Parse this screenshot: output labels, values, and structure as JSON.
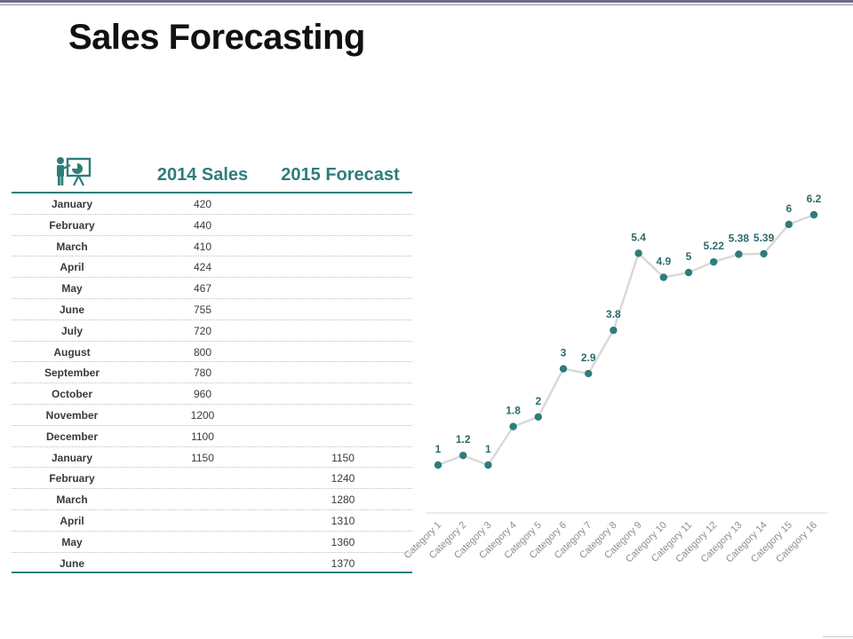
{
  "title": "Sales Forecasting",
  "icon": "presentation-icon",
  "colors": {
    "accent": "#2e7d7b",
    "line": "#d9d9d9",
    "label": "#2e6b6b"
  },
  "table": {
    "headers": [
      "2014 Sales",
      "2015 Forecast"
    ],
    "rows": [
      {
        "month": "January",
        "sales": "420",
        "forecast": ""
      },
      {
        "month": "February",
        "sales": "440",
        "forecast": ""
      },
      {
        "month": "March",
        "sales": "410",
        "forecast": ""
      },
      {
        "month": "April",
        "sales": "424",
        "forecast": ""
      },
      {
        "month": "May",
        "sales": "467",
        "forecast": ""
      },
      {
        "month": "June",
        "sales": "755",
        "forecast": ""
      },
      {
        "month": "July",
        "sales": "720",
        "forecast": ""
      },
      {
        "month": "August",
        "sales": "800",
        "forecast": ""
      },
      {
        "month": "September",
        "sales": "780",
        "forecast": ""
      },
      {
        "month": "October",
        "sales": "960",
        "forecast": ""
      },
      {
        "month": "November",
        "sales": "1200",
        "forecast": ""
      },
      {
        "month": "December",
        "sales": "1100",
        "forecast": ""
      },
      {
        "month": "January",
        "sales": "1150",
        "forecast": "1150"
      },
      {
        "month": "February",
        "sales": "",
        "forecast": "1240"
      },
      {
        "month": "March",
        "sales": "",
        "forecast": "1280"
      },
      {
        "month": "April",
        "sales": "",
        "forecast": "1310"
      },
      {
        "month": "May",
        "sales": "",
        "forecast": "1360"
      },
      {
        "month": "June",
        "sales": "",
        "forecast": "1370"
      }
    ]
  },
  "chart_data": {
    "type": "line",
    "categories": [
      "Category 1",
      "Category 2",
      "Category 3",
      "Category 4",
      "Category 5",
      "Category 6",
      "Category 7",
      "Category 8",
      "Category 9",
      "Category 10",
      "Category 11",
      "Category 12",
      "Category 13",
      "Category 14",
      "Category 15",
      "Category 16"
    ],
    "values": [
      1,
      1.2,
      1,
      1.8,
      2,
      3,
      2.9,
      3.8,
      5.4,
      4.9,
      5,
      5.22,
      5.38,
      5.39,
      6,
      6.2
    ],
    "labels": [
      "1",
      "1.2",
      "1",
      "1.8",
      "2",
      "3",
      "2.9",
      "3.8",
      "5.4",
      "4.9",
      "5",
      "5.22",
      "5.38",
      "5.39",
      "6",
      "6.2"
    ],
    "title": "",
    "xlabel": "",
    "ylabel": "",
    "ylim": [
      0,
      7
    ],
    "grid": false,
    "legend": "none"
  }
}
